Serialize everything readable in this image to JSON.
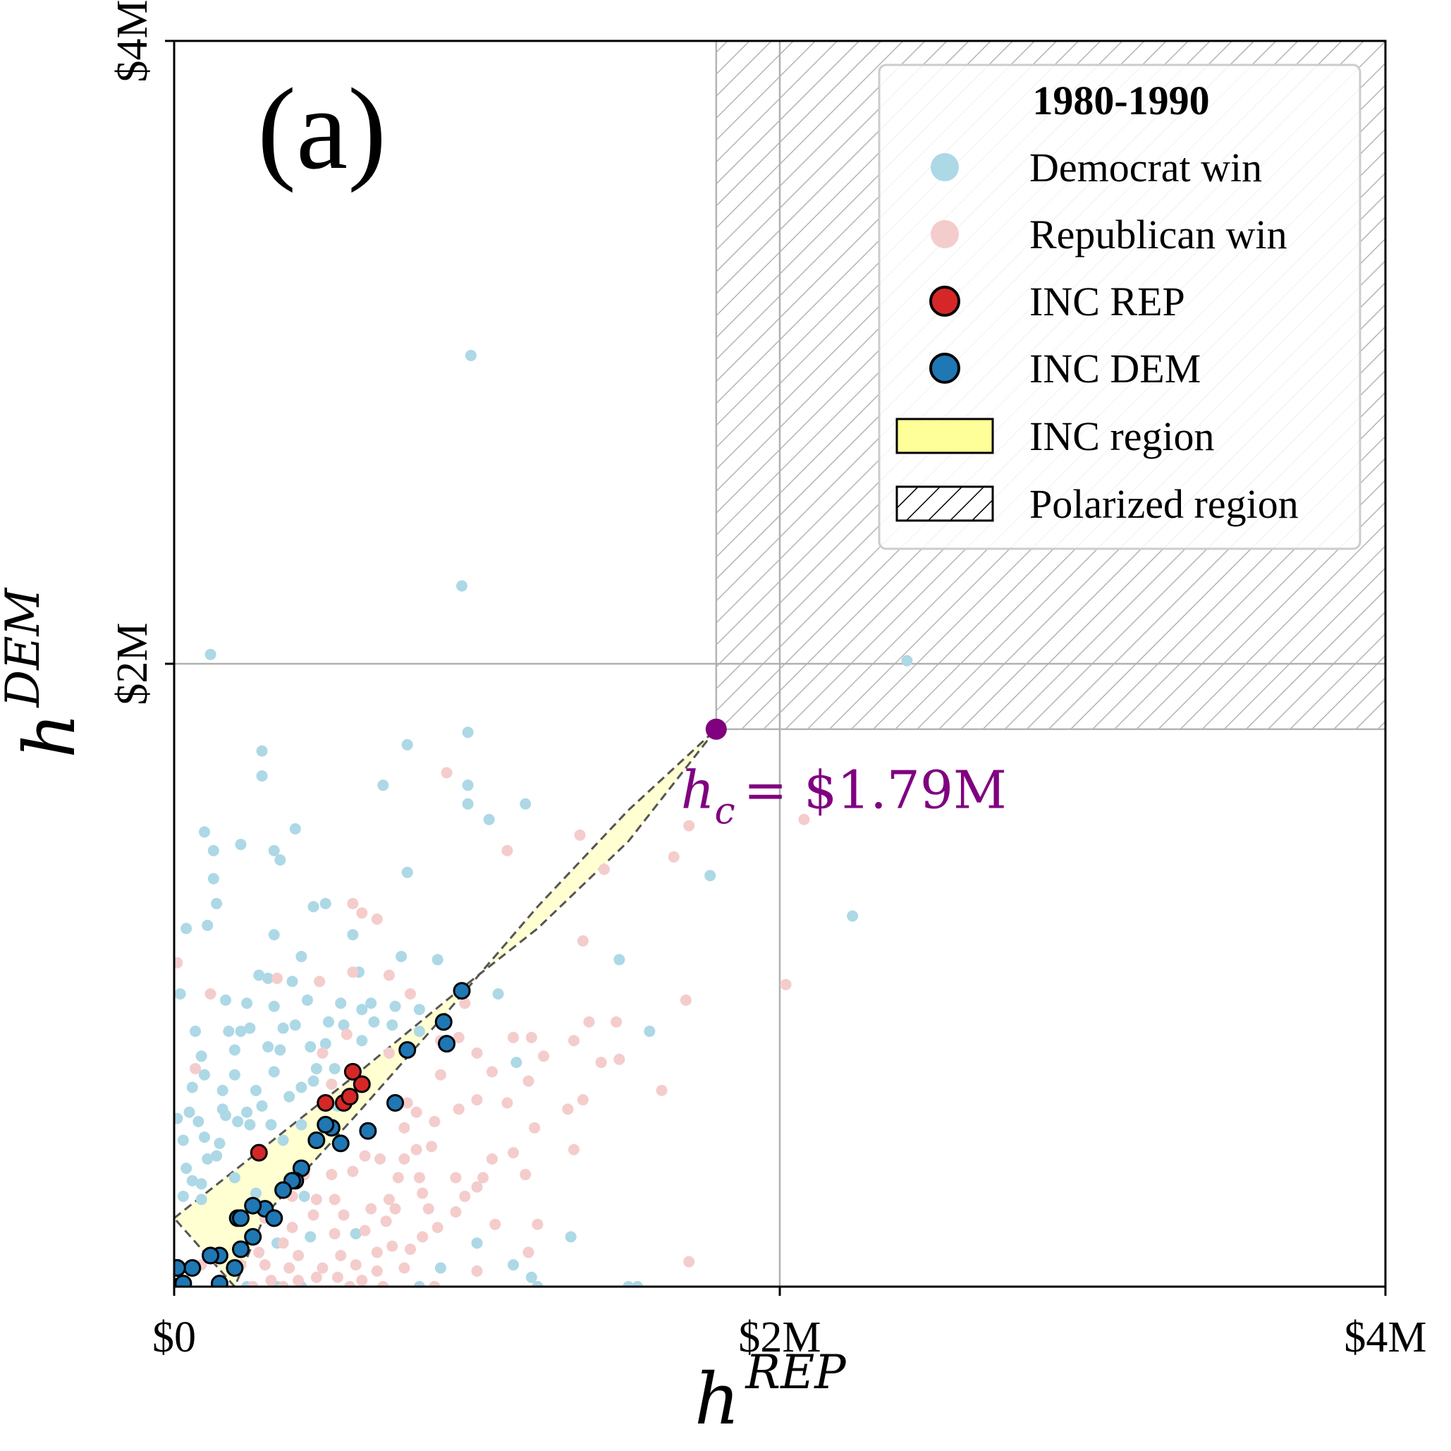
{
  "chart_data": {
    "type": "scatter",
    "panel_label": "(a)",
    "xlabel": {
      "base": "h",
      "sup": "REP"
    },
    "ylabel": {
      "base": "h",
      "sup": "DEM"
    },
    "xlim": [
      0,
      4
    ],
    "ylim": [
      0,
      4
    ],
    "units": "$M",
    "x_ticks": [
      {
        "value": 0,
        "label": "$0"
      },
      {
        "value": 2,
        "label": "$2M"
      },
      {
        "value": 4,
        "label": "$4M"
      }
    ],
    "y_ticks": [
      {
        "value": 2,
        "label": "$2M"
      },
      {
        "value": 4,
        "label": "$4M"
      }
    ],
    "grid": true,
    "legend": {
      "title": "1980-1990",
      "position": "top-right",
      "entries": [
        {
          "label": "Democrat win",
          "marker": "dot",
          "color": "#add8e6"
        },
        {
          "label": "Republican win",
          "marker": "dot",
          "color": "#f4cccc"
        },
        {
          "label": "INC REP",
          "marker": "circle-outlined",
          "color": "#d62728"
        },
        {
          "label": "INC DEM",
          "marker": "circle-outlined",
          "color": "#1f77b4"
        },
        {
          "label": "INC region",
          "marker": "patch",
          "color": "#ffff99"
        },
        {
          "label": "Polarized region",
          "marker": "hatch",
          "color": "#ffffff"
        }
      ]
    },
    "critical_point": {
      "x": 1.79,
      "y": 1.79,
      "label": "h",
      "sub": "c",
      "value_text": "= $1.79M",
      "color": "#800080"
    },
    "polarized_region": {
      "x_min": 1.79,
      "y_min": 1.79
    },
    "inc_region": {
      "upper_boundary": [
        [
          0,
          0.22
        ],
        [
          0.3,
          0.45
        ],
        [
          0.6,
          0.68
        ],
        [
          0.9,
          0.92
        ],
        [
          1.2,
          1.15
        ],
        [
          1.5,
          1.43
        ],
        [
          1.79,
          1.79
        ]
      ],
      "lower_boundary": [
        [
          1.79,
          1.79
        ],
        [
          1.5,
          1.53
        ],
        [
          1.2,
          1.22
        ],
        [
          0.9,
          0.88
        ],
        [
          0.6,
          0.55
        ],
        [
          0.3,
          0.23
        ],
        [
          0.2,
          0
        ]
      ]
    },
    "series": [
      {
        "name": "Democrat win",
        "color": "#add8e6",
        "points": [
          [
            0.98,
            2.99
          ],
          [
            0.95,
            2.25
          ],
          [
            0.12,
            2.03
          ],
          [
            2.42,
            2.01
          ],
          [
            0.97,
            1.78
          ],
          [
            0.77,
            1.74
          ],
          [
            0.29,
            1.72
          ],
          [
            0.29,
            1.64
          ],
          [
            0.97,
            1.61
          ],
          [
            0.69,
            1.61
          ],
          [
            0.97,
            1.55
          ],
          [
            1.16,
            1.55
          ],
          [
            0.4,
            1.47
          ],
          [
            1.04,
            1.5
          ],
          [
            0.1,
            1.46
          ],
          [
            0.22,
            1.42
          ],
          [
            0.13,
            1.4
          ],
          [
            0.33,
            1.4
          ],
          [
            0.35,
            1.37
          ],
          [
            0.77,
            1.33
          ],
          [
            0.13,
            1.31
          ],
          [
            1.77,
            1.32
          ],
          [
            0.46,
            1.22
          ],
          [
            0.5,
            1.23
          ],
          [
            0.14,
            1.23
          ],
          [
            0.04,
            1.15
          ],
          [
            0.11,
            1.16
          ],
          [
            0.33,
            1.13
          ],
          [
            0.59,
            1.13
          ],
          [
            2.24,
            1.19
          ],
          [
            0.42,
            1.06
          ],
          [
            0.75,
            1.06
          ],
          [
            0.87,
            1.05
          ],
          [
            1.47,
            1.05
          ],
          [
            0.28,
            1.0
          ],
          [
            0.31,
            0.99
          ],
          [
            0.39,
            0.98
          ],
          [
            0.61,
            1.01
          ],
          [
            0.02,
            0.94
          ],
          [
            0.17,
            0.92
          ],
          [
            0.24,
            0.91
          ],
          [
            0.33,
            0.9
          ],
          [
            0.44,
            0.92
          ],
          [
            0.55,
            0.91
          ],
          [
            0.62,
            0.89
          ],
          [
            0.65,
            0.91
          ],
          [
            0.73,
            0.9
          ],
          [
            0.81,
            0.89
          ],
          [
            1.07,
            0.94
          ],
          [
            0.07,
            0.82
          ],
          [
            0.18,
            0.82
          ],
          [
            0.22,
            0.82
          ],
          [
            0.25,
            0.83
          ],
          [
            0.36,
            0.83
          ],
          [
            0.4,
            0.84
          ],
          [
            0.51,
            0.85
          ],
          [
            0.56,
            0.84
          ],
          [
            0.66,
            0.85
          ],
          [
            0.72,
            0.84
          ],
          [
            0.81,
            0.82
          ],
          [
            0.09,
            0.74
          ],
          [
            0.2,
            0.76
          ],
          [
            0.31,
            0.77
          ],
          [
            0.35,
            0.76
          ],
          [
            0.45,
            0.77
          ],
          [
            0.5,
            0.78
          ],
          [
            0.62,
            0.79
          ],
          [
            1.57,
            0.82
          ],
          [
            0.1,
            0.68
          ],
          [
            0.2,
            0.68
          ],
          [
            0.33,
            0.69
          ],
          [
            0.47,
            0.7
          ],
          [
            0.53,
            0.7
          ],
          [
            0.06,
            0.64
          ],
          [
            0.16,
            0.63
          ],
          [
            0.27,
            0.63
          ],
          [
            0.42,
            0.64
          ],
          [
            0.46,
            0.66
          ],
          [
            1.13,
            0.72
          ],
          [
            0.05,
            0.56
          ],
          [
            0.16,
            0.57
          ],
          [
            0.24,
            0.56
          ],
          [
            0.29,
            0.58
          ],
          [
            0.38,
            0.61
          ],
          [
            0.54,
            0.58
          ],
          [
            0.01,
            0.54
          ],
          [
            0.08,
            0.53
          ],
          [
            0.17,
            0.55
          ],
          [
            0.21,
            0.53
          ],
          [
            0.25,
            0.52
          ],
          [
            0.32,
            0.52
          ],
          [
            0.42,
            0.52
          ],
          [
            0.03,
            0.47
          ],
          [
            0.1,
            0.48
          ],
          [
            0.15,
            0.46
          ],
          [
            0.36,
            0.47
          ],
          [
            0.04,
            0.38
          ],
          [
            0.11,
            0.41
          ],
          [
            0.14,
            0.42
          ],
          [
            0.06,
            0.34
          ],
          [
            0.09,
            0.33
          ],
          [
            0.2,
            0.35
          ],
          [
            0.03,
            0.29
          ],
          [
            0.09,
            0.28
          ],
          [
            0.27,
            0.3
          ],
          [
            0.43,
            0.29
          ],
          [
            1.0,
            0.14
          ],
          [
            0.88,
            0.06
          ],
          [
            1.12,
            0.07
          ],
          [
            0.34,
            0.14
          ],
          [
            0.45,
            0.16
          ],
          [
            0.6,
            0.17
          ],
          [
            1.31,
            0.16
          ],
          [
            1.18,
            0.03
          ],
          [
            1.53,
            0.0
          ],
          [
            1.5,
            0.0
          ],
          [
            0.24,
            0.0
          ],
          [
            0.34,
            0.0
          ],
          [
            0.42,
            0.0
          ],
          [
            0.81,
            0.0
          ],
          [
            1.2,
            0.0
          ]
        ]
      },
      {
        "name": "Republican win",
        "color": "#f4cccc",
        "points": [
          [
            0.9,
            1.65
          ],
          [
            1.7,
            1.48
          ],
          [
            2.08,
            1.5
          ],
          [
            1.65,
            1.38
          ],
          [
            0.59,
            1.23
          ],
          [
            1.34,
            1.45
          ],
          [
            1.1,
            1.4
          ],
          [
            1.42,
            1.34
          ],
          [
            0.62,
            1.2
          ],
          [
            0.67,
            1.18
          ],
          [
            1.35,
            1.11
          ],
          [
            0.01,
            1.04
          ],
          [
            0.59,
            1.01
          ],
          [
            0.71,
            1.0
          ],
          [
            2.02,
            0.97
          ],
          [
            0.34,
            0.99
          ],
          [
            0.48,
            0.98
          ],
          [
            0.78,
            0.94
          ],
          [
            0.12,
            0.94
          ],
          [
            0.96,
            0.91
          ],
          [
            1.69,
            0.92
          ],
          [
            1.37,
            0.85
          ],
          [
            1.46,
            0.85
          ],
          [
            0.94,
            0.8
          ],
          [
            0.57,
            0.81
          ],
          [
            1.12,
            0.8
          ],
          [
            1.18,
            0.8
          ],
          [
            0.88,
            0.79
          ],
          [
            1.32,
            0.79
          ],
          [
            0.49,
            0.75
          ],
          [
            0.71,
            0.75
          ],
          [
            1.0,
            0.75
          ],
          [
            1.22,
            0.74
          ],
          [
            1.41,
            0.72
          ],
          [
            1.47,
            0.73
          ],
          [
            0.07,
            0.7
          ],
          [
            0.88,
            0.68
          ],
          [
            1.05,
            0.69
          ],
          [
            1.17,
            0.66
          ],
          [
            0.52,
            0.65
          ],
          [
            0.61,
            0.64
          ],
          [
            1.61,
            0.63
          ],
          [
            1.35,
            0.6
          ],
          [
            0.77,
            0.59
          ],
          [
            0.8,
            0.56
          ],
          [
            0.94,
            0.57
          ],
          [
            1.0,
            0.6
          ],
          [
            0.76,
            0.51
          ],
          [
            0.86,
            0.53
          ],
          [
            1.1,
            0.59
          ],
          [
            1.3,
            0.57
          ],
          [
            1.19,
            0.51
          ],
          [
            1.12,
            0.43
          ],
          [
            1.32,
            0.44
          ],
          [
            1.05,
            0.41
          ],
          [
            0.76,
            0.41
          ],
          [
            0.68,
            0.41
          ],
          [
            0.85,
            0.45
          ],
          [
            0.8,
            0.44
          ],
          [
            0.63,
            0.42
          ],
          [
            0.59,
            0.37
          ],
          [
            0.43,
            0.36
          ],
          [
            0.52,
            0.36
          ],
          [
            0.74,
            0.35
          ],
          [
            0.81,
            0.35
          ],
          [
            0.93,
            0.35
          ],
          [
            1.02,
            0.35
          ],
          [
            1.16,
            0.36
          ],
          [
            1.0,
            0.32
          ],
          [
            0.82,
            0.3
          ],
          [
            0.96,
            0.29
          ],
          [
            0.71,
            0.28
          ],
          [
            0.53,
            0.28
          ],
          [
            0.47,
            0.28
          ],
          [
            0.39,
            0.29
          ],
          [
            0.46,
            0.23
          ],
          [
            0.56,
            0.23
          ],
          [
            0.65,
            0.25
          ],
          [
            0.73,
            0.25
          ],
          [
            0.84,
            0.25
          ],
          [
            0.93,
            0.24
          ],
          [
            0.3,
            0.22
          ],
          [
            0.39,
            0.19
          ],
          [
            0.53,
            0.17
          ],
          [
            0.63,
            0.18
          ],
          [
            0.7,
            0.21
          ],
          [
            0.82,
            0.16
          ],
          [
            0.87,
            0.19
          ],
          [
            1.06,
            0.2
          ],
          [
            1.2,
            0.2
          ],
          [
            1.17,
            0.11
          ],
          [
            0.78,
            0.12
          ],
          [
            0.72,
            0.13
          ],
          [
            0.67,
            0.11
          ],
          [
            0.55,
            0.1
          ],
          [
            0.41,
            0.1
          ],
          [
            0.28,
            0.11
          ],
          [
            0.36,
            0.14
          ],
          [
            0.22,
            0.07
          ],
          [
            0.3,
            0.07
          ],
          [
            0.38,
            0.06
          ],
          [
            0.49,
            0.06
          ],
          [
            0.6,
            0.07
          ],
          [
            0.67,
            0.05
          ],
          [
            0.76,
            0.06
          ],
          [
            0.32,
            0.02
          ],
          [
            0.41,
            0.02
          ],
          [
            0.54,
            0.03
          ],
          [
            0.62,
            0.02
          ],
          [
            0.47,
            0.03
          ],
          [
            1.0,
            0.05
          ],
          [
            1.7,
            0.08
          ],
          [
            0.26,
            0.0
          ],
          [
            0.36,
            0.0
          ],
          [
            0.58,
            0.0
          ],
          [
            0.69,
            0.0
          ],
          [
            0.86,
            0.0
          ],
          [
            0.09,
            0.07
          ],
          [
            0.14,
            0.09
          ]
        ]
      },
      {
        "name": "INC REP",
        "color": "#d62728",
        "outlined": true,
        "points": [
          [
            0.01,
            0.06
          ],
          [
            0.28,
            0.43
          ],
          [
            0.5,
            0.59
          ],
          [
            0.56,
            0.59
          ],
          [
            0.58,
            0.61
          ],
          [
            0.59,
            0.69
          ],
          [
            0.62,
            0.65
          ]
        ]
      },
      {
        "name": "INC DEM",
        "color": "#1f77b4",
        "outlined": true,
        "points": [
          [
            0.95,
            0.95
          ],
          [
            0.89,
            0.85
          ],
          [
            0.9,
            0.78
          ],
          [
            0.77,
            0.76
          ],
          [
            0.73,
            0.59
          ],
          [
            0.64,
            0.5
          ],
          [
            0.55,
            0.46
          ],
          [
            0.52,
            0.51
          ],
          [
            0.5,
            0.52
          ],
          [
            0.47,
            0.47
          ],
          [
            0.42,
            0.38
          ],
          [
            0.4,
            0.34
          ],
          [
            0.39,
            0.34
          ],
          [
            0.36,
            0.31
          ],
          [
            0.3,
            0.25
          ],
          [
            0.33,
            0.22
          ],
          [
            0.26,
            0.26
          ],
          [
            0.21,
            0.22
          ],
          [
            0.22,
            0.22
          ],
          [
            0.26,
            0.16
          ],
          [
            0.15,
            0.1
          ],
          [
            0.22,
            0.12
          ],
          [
            0.2,
            0.06
          ],
          [
            0.06,
            0.06
          ],
          [
            0.12,
            0.1
          ],
          [
            0.0,
            0.0
          ],
          [
            0.03,
            0.01
          ],
          [
            0.15,
            0.01
          ],
          [
            0.01,
            0.06
          ]
        ]
      }
    ]
  }
}
